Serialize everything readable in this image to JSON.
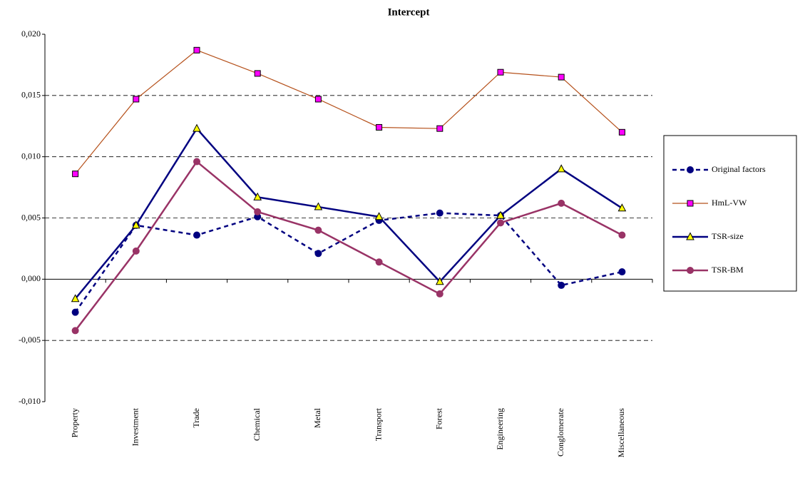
{
  "chart_data": {
    "type": "line",
    "title": "Intercept",
    "categories": [
      "Property",
      "Investment",
      "Trade",
      "Chemical",
      "Metal",
      "Transport",
      "Forest",
      "Engineering",
      "Conglomerate",
      "Miscellaneous"
    ],
    "series": [
      {
        "name": "Original factors",
        "color": "#000080",
        "marker": "circle",
        "marker_color": "#000080",
        "line_style": "dashed",
        "line_width": 2.5,
        "values": [
          -0.0027,
          0.0044,
          0.0036,
          0.0051,
          0.0021,
          0.0048,
          0.0054,
          0.0052,
          -0.0005,
          0.0006
        ]
      },
      {
        "name": "HmL-VW",
        "color": "#b5501a",
        "marker": "square",
        "marker_color": "#ff00ff",
        "line_style": "solid",
        "line_width": 1.2,
        "values": [
          0.0086,
          0.0147,
          0.0187,
          0.0168,
          0.0147,
          0.0124,
          0.0123,
          0.0169,
          0.0165,
          0.012
        ]
      },
      {
        "name": "TSR-size",
        "color": "#000080",
        "marker": "triangle",
        "marker_color": "#ffff00",
        "line_style": "solid",
        "line_width": 2.5,
        "values": [
          -0.0016,
          0.0044,
          0.0123,
          0.0067,
          0.0059,
          0.0051,
          -0.0002,
          0.0052,
          0.009,
          0.0058
        ]
      },
      {
        "name": "TSR-BM",
        "color": "#993366",
        "marker": "circle",
        "marker_color": "#993366",
        "line_style": "solid",
        "line_width": 2.5,
        "values": [
          -0.0042,
          0.0023,
          0.0096,
          0.0055,
          0.004,
          0.0014,
          -0.0012,
          0.0046,
          0.0062,
          0.0036
        ]
      }
    ],
    "ylim": [
      -0.01,
      0.02
    ],
    "yticks": [
      {
        "value": -0.01,
        "label": "-0,010"
      },
      {
        "value": -0.005,
        "label": "-0,005"
      },
      {
        "value": 0,
        "label": "0,000"
      },
      {
        "value": 0.005,
        "label": "0,005"
      },
      {
        "value": 0.01,
        "label": "0,010"
      },
      {
        "value": 0.015,
        "label": "0,015"
      },
      {
        "value": 0.02,
        "label": "0,020"
      }
    ],
    "grid": true,
    "legend": "right"
  }
}
